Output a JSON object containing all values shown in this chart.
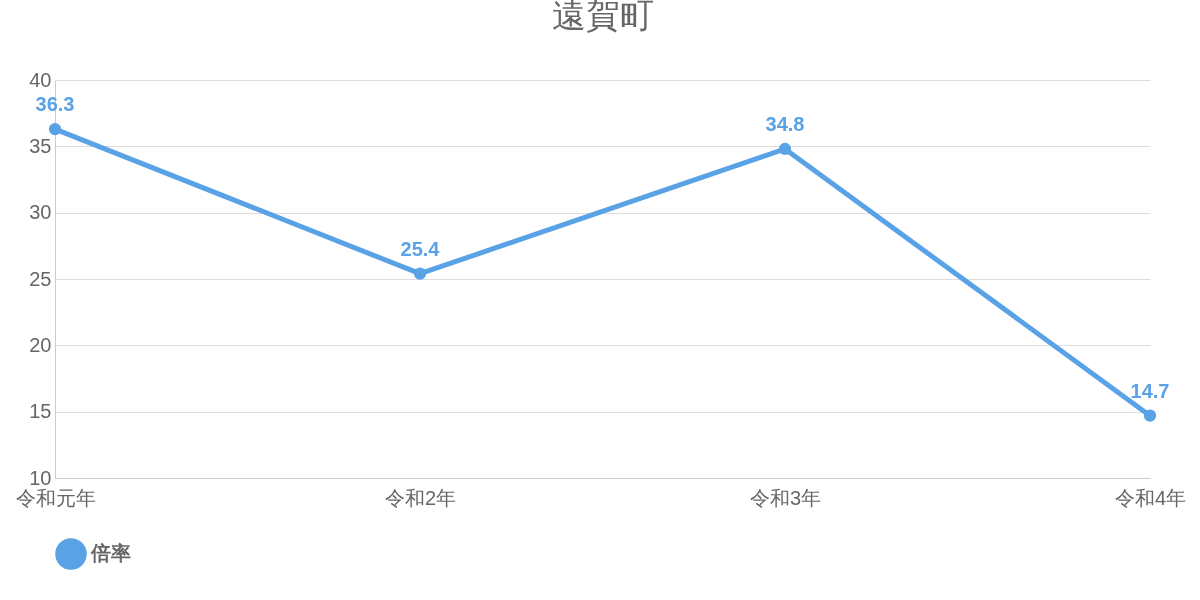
{
  "chart_data": {
    "type": "line",
    "title": "遠賀町",
    "categories": [
      "令和元年",
      "令和2年",
      "令和3年",
      "令和4年"
    ],
    "series": [
      {
        "name": "倍率",
        "color": "#5aa2e6",
        "values": [
          36.3,
          25.4,
          34.8,
          14.7
        ]
      }
    ],
    "ylim": [
      10,
      40
    ],
    "yticks": [
      10,
      15,
      20,
      25,
      30,
      35,
      40
    ],
    "grid": "y",
    "legend": "bottom",
    "marker": "circle",
    "line_style": "solid",
    "data_labels": true
  }
}
